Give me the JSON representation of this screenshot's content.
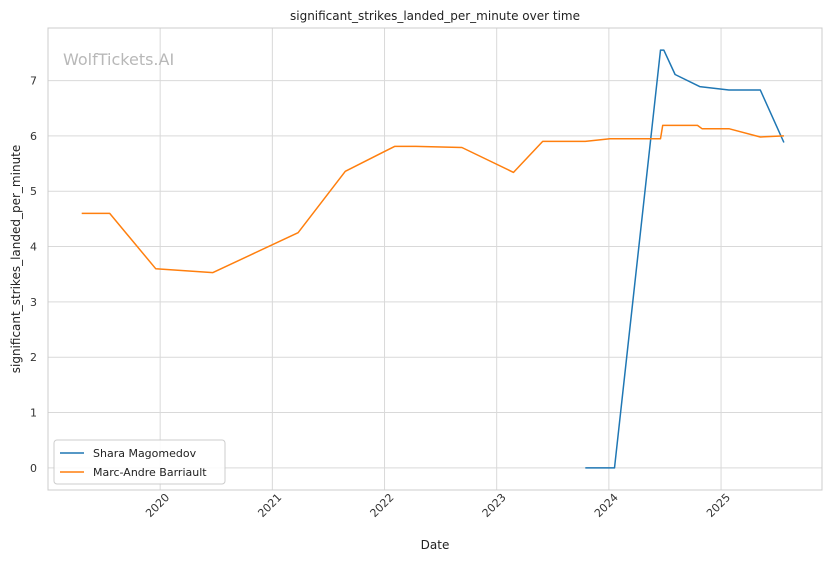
{
  "chart_data": {
    "type": "line",
    "title": "significant_strikes_landed_per_minute over time",
    "xlabel": "Date",
    "ylabel": "significant_strikes_landed_per_minute",
    "watermark": "WolfTickets.AI",
    "xlim": [
      2019.0,
      2025.9
    ],
    "ylim": [
      -0.4,
      7.95
    ],
    "x_ticks": [
      2020,
      2021,
      2022,
      2023,
      2024,
      2025
    ],
    "x_tick_labels": [
      "2020",
      "2021",
      "2022",
      "2023",
      "2024",
      "2025"
    ],
    "y_ticks": [
      0,
      1,
      2,
      3,
      4,
      5,
      6,
      7
    ],
    "y_tick_labels": [
      "0",
      "1",
      "2",
      "3",
      "4",
      "5",
      "6",
      "7"
    ],
    "grid": true,
    "legend_position": "lower-left",
    "series": [
      {
        "name": "Shara Magomedov",
        "color": "#1f77b4",
        "x": [
          2023.79,
          2024.05,
          2024.46,
          2024.49,
          2024.59,
          2024.81,
          2025.07,
          2025.35,
          2025.56
        ],
        "y": [
          0.0,
          0.0,
          7.55,
          7.55,
          7.11,
          6.89,
          6.83,
          6.83,
          5.88
        ]
      },
      {
        "name": "Marc-Andre Barriault",
        "color": "#ff7f0e",
        "x": [
          2019.3,
          2019.55,
          2019.96,
          2020.47,
          2021.23,
          2021.65,
          2022.09,
          2022.28,
          2022.69,
          2023.15,
          2023.41,
          2023.79,
          2024.01,
          2024.46,
          2024.48,
          2024.79,
          2024.83,
          2025.07,
          2025.35,
          2025.56
        ],
        "y": [
          4.6,
          4.6,
          3.6,
          3.53,
          4.25,
          5.36,
          5.81,
          5.81,
          5.79,
          5.34,
          5.9,
          5.9,
          5.95,
          5.95,
          6.19,
          6.19,
          6.13,
          6.13,
          5.98,
          6.0
        ]
      }
    ]
  }
}
